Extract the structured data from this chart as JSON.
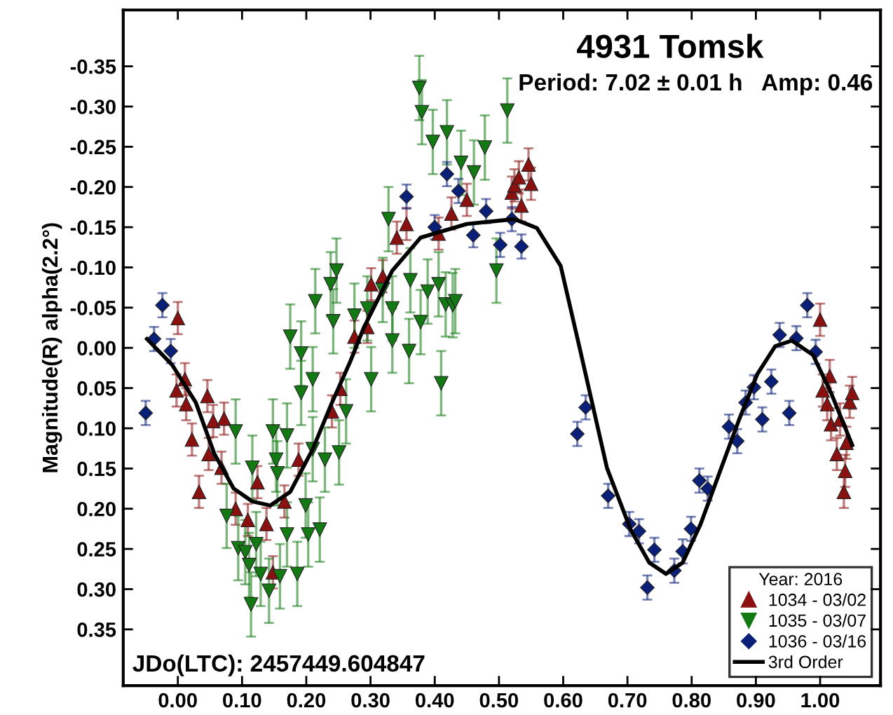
{
  "chart_data": {
    "type": "scatter",
    "title": "4931 Tomsk",
    "subtitle": "Period: 7.02 ± 0.01 h   Amp: 0.46",
    "ylabel": "Magnitude(R) alpha(2.2°)",
    "legend_title": "Year: 2016",
    "annotations": [
      "JDo(LTC): 2457449.604847"
    ],
    "xlim": [
      -0.085,
      1.094
    ],
    "ylim": [
      0.42,
      -0.42
    ],
    "xticks": [
      {
        "value": 0,
        "label": "0.00"
      },
      {
        "value": 0.1,
        "label": "0.10"
      },
      {
        "value": 0.2,
        "label": "0.20"
      },
      {
        "value": 0.3,
        "label": "0.30"
      },
      {
        "value": 0.4,
        "label": "0.40"
      },
      {
        "value": 0.5,
        "label": "0.50"
      },
      {
        "value": 0.6,
        "label": "0.60"
      },
      {
        "value": 0.7,
        "label": "0.70"
      },
      {
        "value": 0.8,
        "label": "0.80"
      },
      {
        "value": 0.9,
        "label": "0.90"
      },
      {
        "value": 1.0,
        "label": "1.00"
      }
    ],
    "yticks": [
      -0.35,
      {
        "value": -0.3,
        "label": "-0.30"
      },
      -0.25,
      {
        "value": -0.2,
        "label": "-0.20"
      },
      -0.15,
      {
        "value": -0.1,
        "label": "-0.10"
      },
      -0.05,
      {
        "value": 0,
        "label": "0.00"
      },
      0.05,
      {
        "value": 0.1,
        "label": "0.10"
      },
      0.15,
      {
        "value": 0.2,
        "label": "0.20"
      },
      0.25,
      {
        "value": 0.3,
        "label": "0.30"
      },
      0.35
    ],
    "grid": false,
    "legend": "bottom right",
    "series": [
      {
        "name": "1034 - 03/02",
        "color": "#8b1010",
        "marker": "triangle",
        "x": [
          0.0,
          -0.002,
          0.011,
          0.013,
          0.022,
          0.033,
          0.046,
          0.048,
          0.055,
          0.068,
          0.072,
          0.09,
          0.094,
          0.109,
          0.124,
          0.138,
          0.148,
          0.166,
          0.188,
          0.218,
          0.24,
          0.253,
          0.275,
          0.295,
          0.301,
          0.319,
          0.341,
          0.356,
          0.406,
          0.426,
          0.45,
          0.48,
          0.52,
          0.524,
          0.531,
          0.535,
          0.546,
          0.55,
          1.0,
          1.004,
          1.011,
          1.015,
          1.017,
          1.026,
          1.031,
          1.037,
          1.039,
          1.041,
          1.046,
          1.05
        ],
        "values": [
          -0.037,
          0.053,
          0.039,
          0.07,
          0.114,
          0.179,
          0.06,
          0.132,
          0.091,
          0.149,
          0.088,
          0.2,
          null,
          0.214,
          0.167,
          0.219,
          0.279,
          0.191,
          0.139,
          null,
          0.079,
          0.051,
          -0.014,
          -0.026,
          -0.079,
          -0.089,
          -0.137,
          -0.154,
          -0.142,
          -0.167,
          -0.184,
          null,
          -0.193,
          -0.202,
          -0.212,
          -0.177,
          -0.228,
          -0.204,
          -0.035,
          0.053,
          0.07,
          0.035,
          0.095,
          0.132,
          0.089,
          0.179,
          0.153,
          0.118,
          0.067,
          0.056
        ],
        "errors": [
          0.02,
          0.02,
          0.02,
          0.02,
          0.02,
          0.02,
          0.02,
          0.02,
          0.02,
          0.02,
          0.02,
          0.02,
          null,
          0.02,
          0.02,
          0.02,
          0.02,
          0.02,
          0.02,
          null,
          0.02,
          0.02,
          0.02,
          0.02,
          0.02,
          0.02,
          0.02,
          0.02,
          0.02,
          0.02,
          0.02,
          null,
          0.02,
          0.02,
          0.02,
          0.02,
          0.02,
          0.02,
          0.02,
          0.02,
          0.02,
          0.02,
          0.02,
          0.02,
          0.02,
          0.02,
          0.02,
          0.02,
          0.02,
          0.02
        ]
      },
      {
        "name": "1035 - 03/07",
        "color": "#137a13",
        "marker": "triangle_down",
        "x": [
          0.076,
          0.09,
          0.094,
          0.105,
          0.111,
          0.114,
          0.116,
          0.122,
          0.129,
          0.142,
          0.148,
          0.153,
          0.155,
          0.159,
          0.17,
          0.17,
          0.175,
          0.186,
          0.192,
          0.192,
          0.199,
          0.203,
          0.21,
          0.21,
          0.214,
          0.221,
          0.229,
          0.238,
          0.242,
          0.247,
          0.251,
          0.262,
          0.273,
          0.275,
          0.295,
          0.301,
          0.319,
          0.328,
          0.334,
          0.334,
          0.36,
          0.362,
          0.376,
          0.378,
          0.38,
          0.389,
          0.397,
          0.406,
          0.41,
          0.417,
          0.419,
          0.428,
          0.432,
          0.441,
          0.461,
          0.478,
          0.496,
          0.513
        ],
        "values": [
          0.209,
          0.104,
          0.249,
          0.254,
          0.27,
          0.319,
          0.149,
          0.244,
          0.281,
          0.302,
          0.104,
          0.139,
          0.156,
          0.284,
          0.109,
          0.232,
          -0.014,
          0.281,
          0.007,
          0.056,
          0.196,
          0.232,
          0.039,
          0.126,
          -0.058,
          0.226,
          0.139,
          -0.079,
          -0.033,
          -0.096,
          0.13,
          0.079,
          null,
          -0.04,
          -0.049,
          0.039,
          -0.072,
          -0.16,
          -0.049,
          -0.009,
          0.004,
          -0.084,
          -0.323,
          -0.032,
          -0.293,
          -0.07,
          -0.256,
          -0.079,
          0.044,
          -0.054,
          -0.268,
          -0.053,
          -0.058,
          -0.23,
          -0.218,
          -0.249,
          -0.096,
          -0.295
        ],
        "errors": [
          0.04,
          0.04,
          0.04,
          0.04,
          0.04,
          0.04,
          0.04,
          0.04,
          0.04,
          0.04,
          0.04,
          0.04,
          0.04,
          0.04,
          0.04,
          0.04,
          0.04,
          0.04,
          0.04,
          0.04,
          0.04,
          0.04,
          0.04,
          0.04,
          0.04,
          0.04,
          0.04,
          0.04,
          0.04,
          0.04,
          0.04,
          0.04,
          null,
          0.04,
          0.04,
          0.04,
          0.04,
          0.04,
          0.04,
          0.04,
          0.04,
          0.04,
          0.04,
          0.04,
          0.04,
          0.04,
          0.04,
          0.04,
          0.04,
          0.04,
          0.04,
          0.04,
          0.04,
          0.04,
          0.04,
          0.04,
          0.04,
          0.04
        ]
      },
      {
        "name": "1036 - 03/16",
        "color": "#0a1f78",
        "marker": "diamond",
        "x": [
          -0.05,
          -0.037,
          -0.024,
          -0.011,
          0.356,
          0.4,
          0.419,
          0.437,
          0.46,
          0.48,
          0.502,
          0.52,
          0.535,
          0.622,
          0.635,
          0.67,
          0.703,
          0.718,
          0.731,
          0.742,
          0.773,
          0.786,
          0.799,
          0.812,
          0.825,
          0.858,
          0.871,
          0.884,
          0.897,
          0.91,
          0.924,
          0.937,
          0.952,
          0.963,
          0.98,
          0.993
        ],
        "values": [
          0.081,
          -0.011,
          -0.053,
          0.004,
          -0.188,
          -0.15,
          -0.216,
          -0.195,
          -0.14,
          -0.17,
          -0.128,
          -0.16,
          -0.126,
          0.107,
          0.074,
          0.184,
          0.219,
          0.228,
          0.298,
          0.251,
          0.277,
          0.253,
          0.225,
          0.165,
          0.175,
          0.098,
          0.116,
          0.068,
          0.049,
          0.089,
          0.042,
          -0.016,
          0.081,
          -0.012,
          -0.053,
          0.005
        ],
        "errors": [
          0.015,
          0.015,
          0.015,
          0.015,
          0.015,
          0.015,
          0.015,
          0.015,
          0.015,
          0.015,
          0.015,
          0.015,
          0.015,
          0.015,
          0.015,
          0.015,
          0.015,
          0.015,
          0.015,
          0.015,
          0.015,
          0.015,
          0.015,
          0.015,
          0.015,
          0.015,
          0.015,
          0.015,
          0.015,
          0.015,
          0.015,
          0.015,
          0.015,
          0.015,
          0.015,
          0.015
        ]
      },
      {
        "name": "3rd Order",
        "type": "line",
        "color": "#000000",
        "marker": "none",
        "line_style": "solid",
        "x": [
          -0.048,
          -0.009,
          0.028,
          0.057,
          0.087,
          0.116,
          0.144,
          0.175,
          0.21,
          0.24,
          0.269,
          0.29,
          0.334,
          0.378,
          0.45,
          0.524,
          0.559,
          0.596,
          0.625,
          0.668,
          0.705,
          0.734,
          0.76,
          0.786,
          0.814,
          0.843,
          0.873,
          0.902,
          0.93,
          0.956,
          0.989,
          1.017,
          1.05
        ],
        "values": [
          -0.011,
          0.021,
          0.068,
          0.132,
          0.175,
          0.191,
          0.196,
          0.179,
          0.126,
          0.068,
          0.016,
          -0.026,
          -0.096,
          -0.137,
          -0.154,
          -0.16,
          -0.149,
          -0.102,
          -0.002,
          0.149,
          0.226,
          0.267,
          0.281,
          0.267,
          0.219,
          0.156,
          0.091,
          0.033,
          -0.002,
          -0.009,
          0.009,
          0.056,
          0.121
        ]
      }
    ]
  }
}
